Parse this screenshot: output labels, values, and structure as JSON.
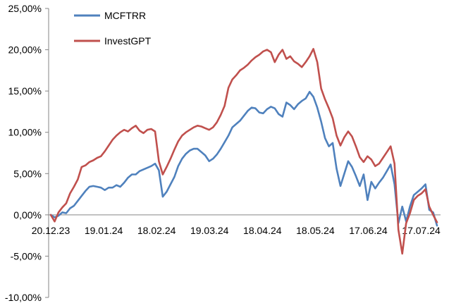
{
  "chart_data": {
    "type": "line",
    "title": "",
    "xlabel": "",
    "ylabel": "",
    "ylim": [
      -10,
      25
    ],
    "y_ticks": [
      25,
      20,
      15,
      10,
      5,
      0,
      -5,
      -10
    ],
    "y_tick_labels": [
      "25,00%",
      "20,00%",
      "15,00%",
      "10,00%",
      "5,00%",
      "0,00%",
      "-5,00%",
      "-10,00%"
    ],
    "x_range": [
      0,
      100
    ],
    "x_ticks": [
      {
        "x": 0,
        "label": "20.12.23"
      },
      {
        "x": 13.7,
        "label": "19.01.24"
      },
      {
        "x": 27.4,
        "label": "18.02.24"
      },
      {
        "x": 41.1,
        "label": "19.03.24"
      },
      {
        "x": 54.8,
        "label": "18.04.24"
      },
      {
        "x": 68.5,
        "label": "18.05.24"
      },
      {
        "x": 82.2,
        "label": "17.06.24"
      },
      {
        "x": 95.9,
        "label": "17.07.24"
      }
    ],
    "grid": false,
    "legend_position": "top-left",
    "series": [
      {
        "name": "MCFTRR",
        "color": "#4F81BD",
        "points": [
          [
            0,
            0
          ],
          [
            1,
            -0.3
          ],
          [
            2,
            -0.1
          ],
          [
            3,
            0.3
          ],
          [
            4,
            0.2
          ],
          [
            5,
            0.8
          ],
          [
            6,
            1.1
          ],
          [
            7,
            1.7
          ],
          [
            8,
            2.3
          ],
          [
            9,
            2.9
          ],
          [
            10,
            3.4
          ],
          [
            11,
            3.5
          ],
          [
            12,
            3.4
          ],
          [
            13,
            3.3
          ],
          [
            14,
            3.0
          ],
          [
            15,
            3.3
          ],
          [
            16,
            3.3
          ],
          [
            17,
            3.6
          ],
          [
            18,
            3.4
          ],
          [
            19,
            3.9
          ],
          [
            20,
            4.5
          ],
          [
            21,
            4.9
          ],
          [
            22,
            4.9
          ],
          [
            23,
            5.3
          ],
          [
            24,
            5.5
          ],
          [
            25,
            5.7
          ],
          [
            26,
            5.9
          ],
          [
            27,
            6.2
          ],
          [
            28,
            5.4
          ],
          [
            29,
            2.2
          ],
          [
            30,
            2.8
          ],
          [
            31,
            3.7
          ],
          [
            32,
            4.6
          ],
          [
            33,
            5.9
          ],
          [
            34,
            6.8
          ],
          [
            35,
            7.4
          ],
          [
            36,
            7.8
          ],
          [
            37,
            8.0
          ],
          [
            38,
            8.0
          ],
          [
            39,
            7.6
          ],
          [
            40,
            7.2
          ],
          [
            41,
            6.5
          ],
          [
            42,
            6.8
          ],
          [
            43,
            7.3
          ],
          [
            44,
            8.0
          ],
          [
            45,
            8.8
          ],
          [
            46,
            9.6
          ],
          [
            47,
            10.6
          ],
          [
            48,
            11.0
          ],
          [
            49,
            11.4
          ],
          [
            50,
            12.0
          ],
          [
            51,
            12.6
          ],
          [
            52,
            13.0
          ],
          [
            53,
            12.9
          ],
          [
            54,
            12.4
          ],
          [
            55,
            12.3
          ],
          [
            56,
            12.8
          ],
          [
            57,
            13.1
          ],
          [
            58,
            12.9
          ],
          [
            59,
            12.2
          ],
          [
            60,
            11.9
          ],
          [
            61,
            13.6
          ],
          [
            62,
            13.3
          ],
          [
            63,
            12.8
          ],
          [
            64,
            13.4
          ],
          [
            65,
            13.8
          ],
          [
            66,
            14.1
          ],
          [
            67,
            14.9
          ],
          [
            68,
            14.3
          ],
          [
            69,
            13.0
          ],
          [
            70,
            11.3
          ],
          [
            71,
            9.3
          ],
          [
            72,
            8.3
          ],
          [
            73,
            8.7
          ],
          [
            74,
            5.6
          ],
          [
            75,
            3.5
          ],
          [
            76,
            5.0
          ],
          [
            77,
            6.5
          ],
          [
            78,
            5.8
          ],
          [
            79,
            4.7
          ],
          [
            80,
            3.5
          ],
          [
            81,
            4.9
          ],
          [
            82,
            1.8
          ],
          [
            83,
            4.0
          ],
          [
            84,
            3.2
          ],
          [
            85,
            3.9
          ],
          [
            86,
            4.5
          ],
          [
            87,
            5.3
          ],
          [
            88,
            6.1
          ],
          [
            89,
            3.7
          ],
          [
            90,
            -1.0
          ],
          [
            91,
            1.0
          ],
          [
            92,
            -0.8
          ],
          [
            93,
            1.0
          ],
          [
            94,
            2.4
          ],
          [
            95,
            2.8
          ],
          [
            96,
            3.2
          ],
          [
            97,
            3.7
          ],
          [
            98,
            0.6
          ],
          [
            99,
            0.3
          ],
          [
            100,
            -1.3
          ]
        ]
      },
      {
        "name": "InvestGPT",
        "color": "#C0504D",
        "points": [
          [
            0,
            0
          ],
          [
            1,
            -0.8
          ],
          [
            2,
            0.3
          ],
          [
            3,
            0.9
          ],
          [
            4,
            1.4
          ],
          [
            5,
            2.6
          ],
          [
            6,
            3.4
          ],
          [
            7,
            4.3
          ],
          [
            8,
            5.8
          ],
          [
            9,
            6.0
          ],
          [
            10,
            6.4
          ],
          [
            11,
            6.6
          ],
          [
            12,
            6.9
          ],
          [
            13,
            7.1
          ],
          [
            14,
            7.7
          ],
          [
            15,
            8.4
          ],
          [
            16,
            9.1
          ],
          [
            17,
            9.6
          ],
          [
            18,
            10.0
          ],
          [
            19,
            10.3
          ],
          [
            20,
            10.1
          ],
          [
            21,
            10.5
          ],
          [
            22,
            10.8
          ],
          [
            23,
            10.2
          ],
          [
            24,
            9.9
          ],
          [
            25,
            10.3
          ],
          [
            26,
            10.4
          ],
          [
            27,
            10.1
          ],
          [
            28,
            6.5
          ],
          [
            29,
            4.9
          ],
          [
            30,
            5.8
          ],
          [
            31,
            6.8
          ],
          [
            32,
            7.9
          ],
          [
            33,
            8.9
          ],
          [
            34,
            9.6
          ],
          [
            35,
            10.0
          ],
          [
            36,
            10.3
          ],
          [
            37,
            10.6
          ],
          [
            38,
            10.8
          ],
          [
            39,
            10.7
          ],
          [
            40,
            10.5
          ],
          [
            41,
            10.3
          ],
          [
            42,
            10.6
          ],
          [
            43,
            11.2
          ],
          [
            44,
            12.1
          ],
          [
            45,
            13.2
          ],
          [
            46,
            15.4
          ],
          [
            47,
            16.4
          ],
          [
            48,
            16.9
          ],
          [
            49,
            17.5
          ],
          [
            50,
            17.8
          ],
          [
            51,
            18.2
          ],
          [
            52,
            18.7
          ],
          [
            53,
            19.1
          ],
          [
            54,
            19.4
          ],
          [
            55,
            19.8
          ],
          [
            56,
            20.0
          ],
          [
            57,
            19.7
          ],
          [
            58,
            18.5
          ],
          [
            59,
            19.4
          ],
          [
            60,
            20.0
          ],
          [
            61,
            18.9
          ],
          [
            62,
            19.2
          ],
          [
            63,
            18.6
          ],
          [
            64,
            18.3
          ],
          [
            65,
            17.9
          ],
          [
            66,
            18.5
          ],
          [
            67,
            19.2
          ],
          [
            68,
            20.1
          ],
          [
            69,
            18.5
          ],
          [
            70,
            15.3
          ],
          [
            71,
            14.0
          ],
          [
            72,
            12.9
          ],
          [
            73,
            11.7
          ],
          [
            74,
            9.6
          ],
          [
            75,
            8.4
          ],
          [
            76,
            9.4
          ],
          [
            77,
            10.1
          ],
          [
            78,
            9.5
          ],
          [
            79,
            8.3
          ],
          [
            80,
            7.0
          ],
          [
            81,
            6.4
          ],
          [
            82,
            7.1
          ],
          [
            83,
            6.7
          ],
          [
            84,
            5.9
          ],
          [
            85,
            6.2
          ],
          [
            86,
            6.9
          ],
          [
            87,
            7.6
          ],
          [
            88,
            8.3
          ],
          [
            89,
            6.2
          ],
          [
            90,
            -1.8
          ],
          [
            91,
            -4.7
          ],
          [
            92,
            -1.0
          ],
          [
            93,
            0.2
          ],
          [
            94,
            1.8
          ],
          [
            95,
            2.3
          ],
          [
            96,
            2.6
          ],
          [
            97,
            3.1
          ],
          [
            98,
            1.0
          ],
          [
            99,
            0.0
          ],
          [
            100,
            -0.9
          ]
        ]
      }
    ]
  }
}
